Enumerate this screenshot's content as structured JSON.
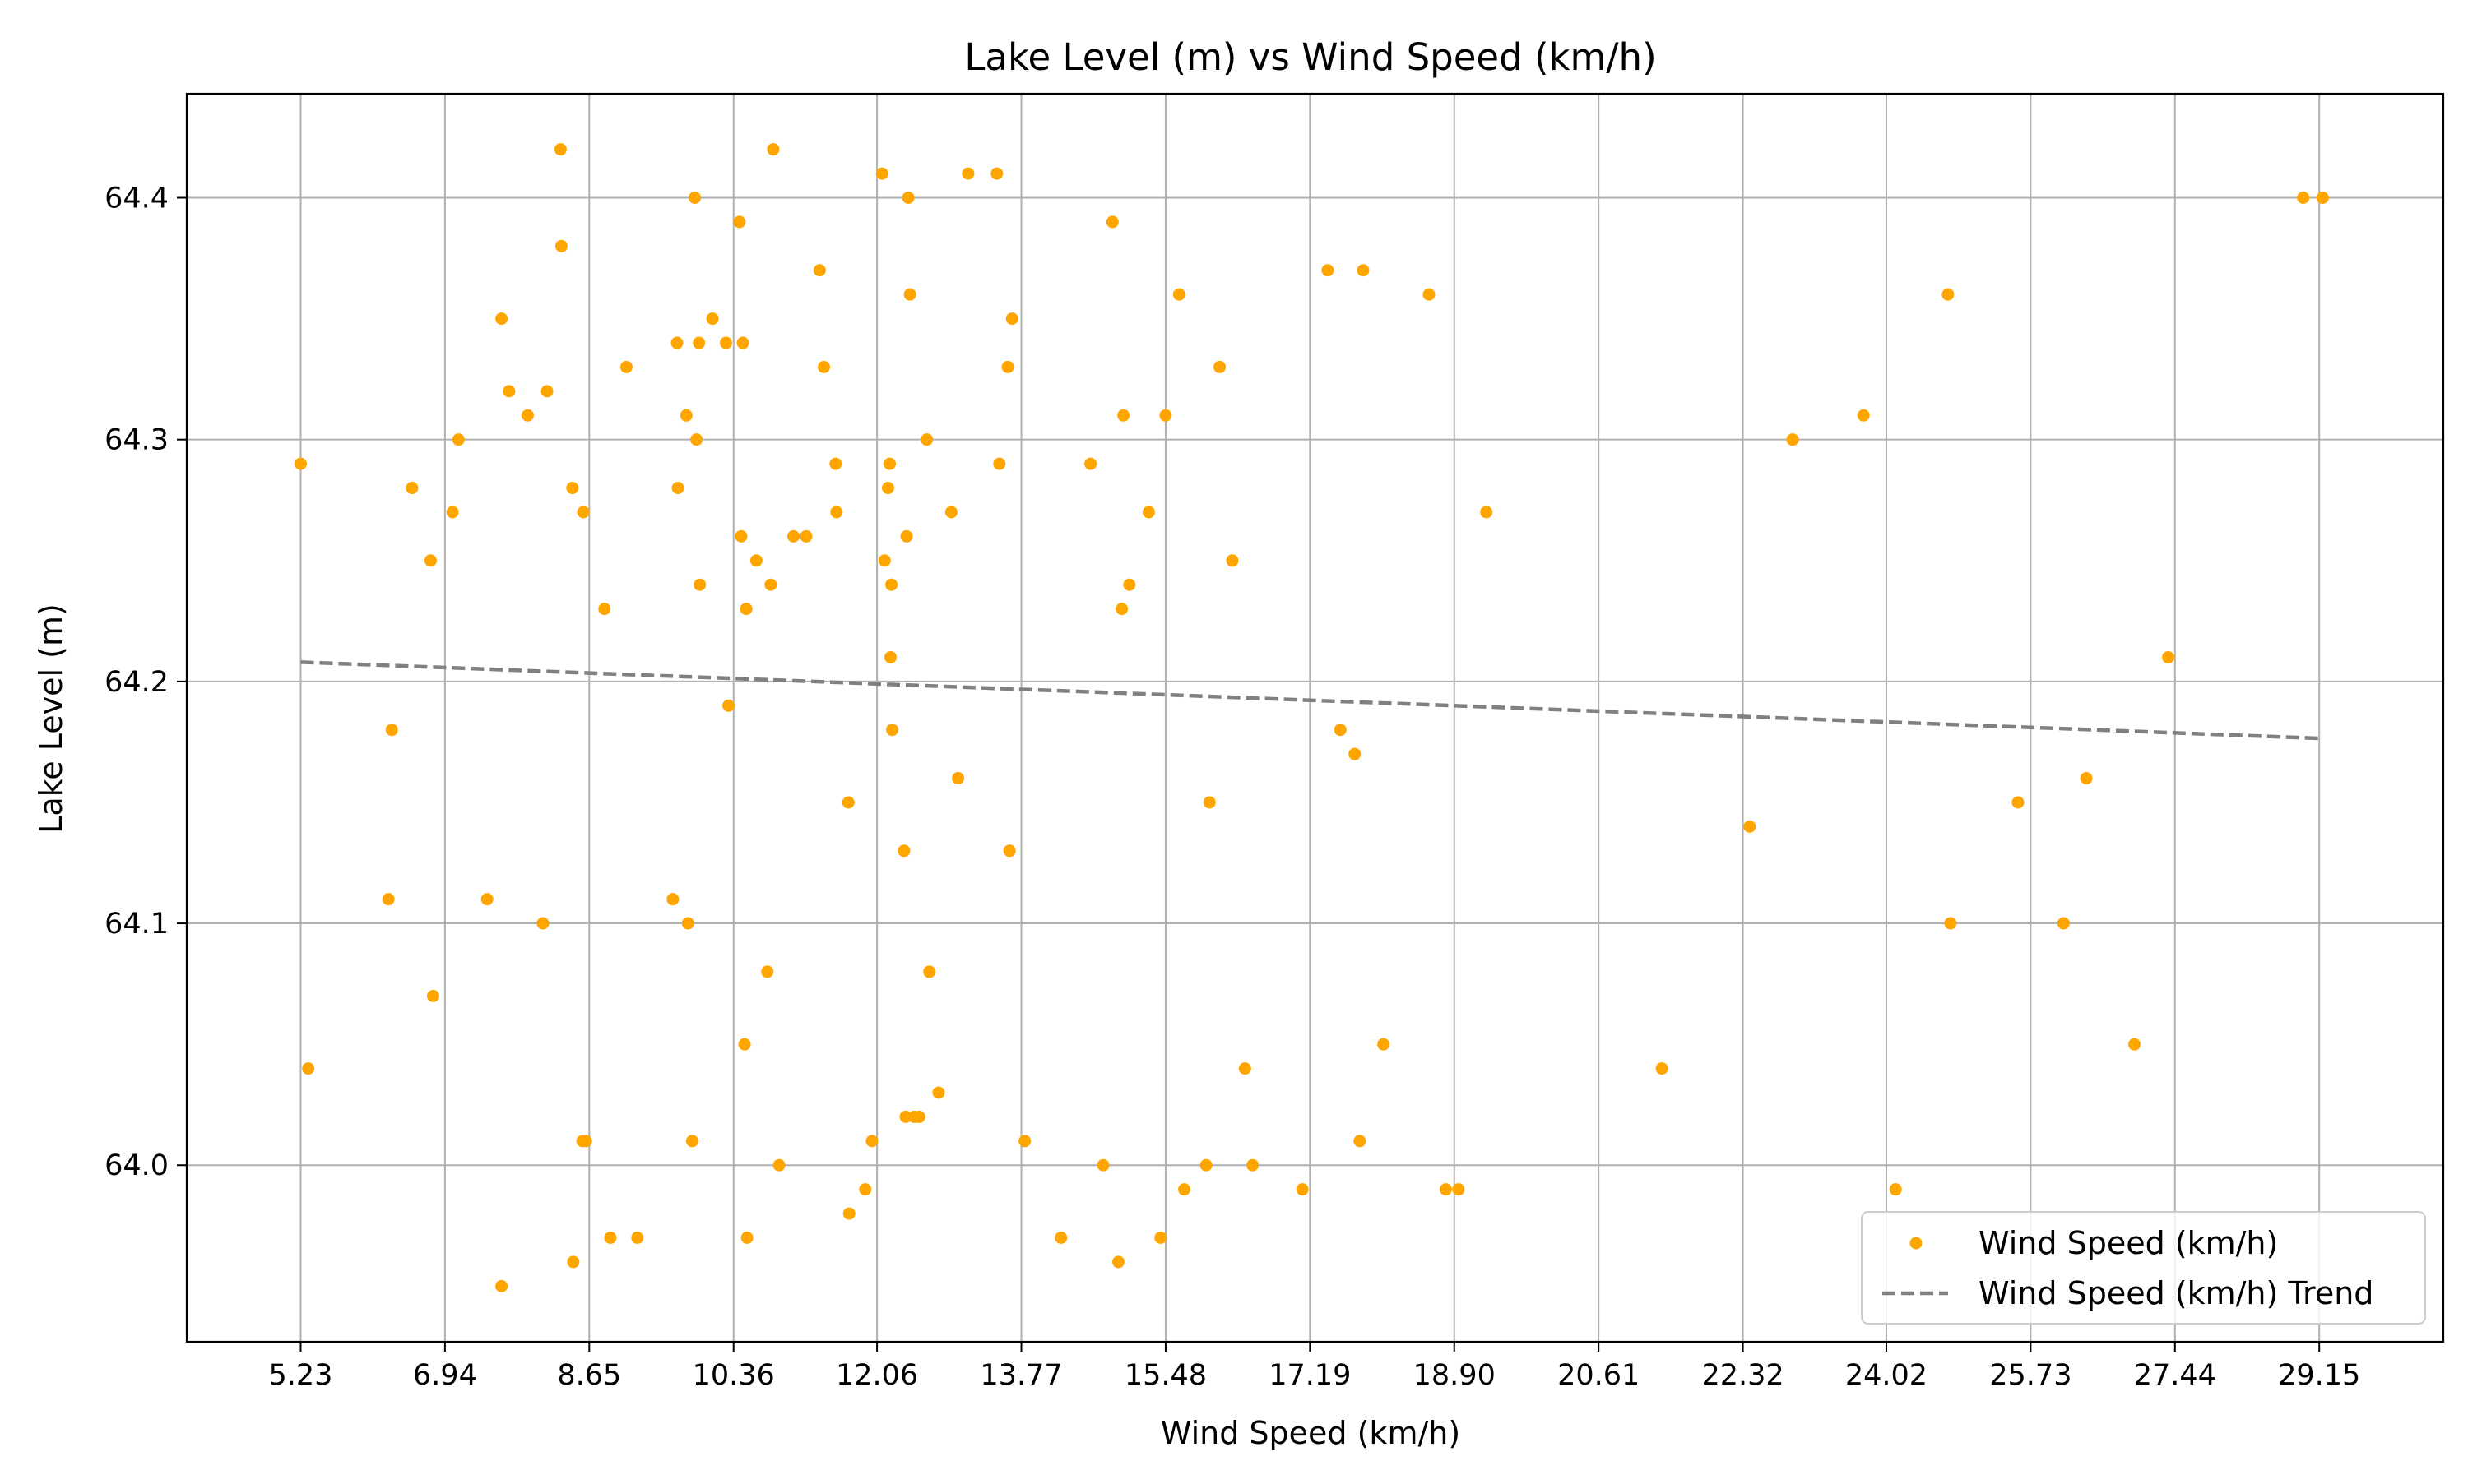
{
  "chart_data": {
    "type": "scatter",
    "title": "Lake Level (m) vs Wind Speed (km/h)",
    "xlabel": "Wind Speed (km/h)",
    "ylabel": "Lake Level (m)",
    "xlim": [
      3.88,
      30.62
    ],
    "ylim": [
      63.927,
      64.443
    ],
    "xticks": [
      "5.23",
      "6.94",
      "8.65",
      "10.36",
      "12.06",
      "13.77",
      "15.48",
      "17.19",
      "18.90",
      "20.61",
      "22.32",
      "24.02",
      "25.73",
      "27.44",
      "29.15"
    ],
    "yticks": [
      "64.0",
      "64.1",
      "64.2",
      "64.3",
      "64.4"
    ],
    "grid": true,
    "legend_position": "lower-right",
    "colors": {
      "points": "#ffa500",
      "trend": "#808080",
      "grid": "#b0b0b0"
    },
    "series": [
      {
        "name": "Wind Speed (km/h)",
        "kind": "scatter",
        "points": [
          [
            5.23,
            64.29
          ],
          [
            5.32,
            64.04
          ],
          [
            6.27,
            64.11
          ],
          [
            6.31,
            64.18
          ],
          [
            6.55,
            64.28
          ],
          [
            6.77,
            64.25
          ],
          [
            6.8,
            64.07
          ],
          [
            7.03,
            64.27
          ],
          [
            7.1,
            64.3
          ],
          [
            7.44,
            64.11
          ],
          [
            7.61,
            64.35
          ],
          [
            7.61,
            63.95
          ],
          [
            7.7,
            64.32
          ],
          [
            7.92,
            64.31
          ],
          [
            8.1,
            64.1
          ],
          [
            8.15,
            64.32
          ],
          [
            8.31,
            64.42
          ],
          [
            8.32,
            64.38
          ],
          [
            8.45,
            64.28
          ],
          [
            8.46,
            63.96
          ],
          [
            8.58,
            64.27
          ],
          [
            8.57,
            64.01
          ],
          [
            8.61,
            64.01
          ],
          [
            8.83,
            64.23
          ],
          [
            8.9,
            63.97
          ],
          [
            9.09,
            64.33
          ],
          [
            9.22,
            63.97
          ],
          [
            9.64,
            64.11
          ],
          [
            9.69,
            64.34
          ],
          [
            9.7,
            64.28
          ],
          [
            9.8,
            64.31
          ],
          [
            9.82,
            64.1
          ],
          [
            9.87,
            64.01
          ],
          [
            9.9,
            64.4
          ],
          [
            9.92,
            64.3
          ],
          [
            9.95,
            64.34
          ],
          [
            9.96,
            64.24
          ],
          [
            10.11,
            64.35
          ],
          [
            10.27,
            64.34
          ],
          [
            10.3,
            64.19
          ],
          [
            10.43,
            64.39
          ],
          [
            10.45,
            64.26
          ],
          [
            10.47,
            64.34
          ],
          [
            10.49,
            64.05
          ],
          [
            10.51,
            64.23
          ],
          [
            10.52,
            63.97
          ],
          [
            10.63,
            64.25
          ],
          [
            10.76,
            64.08
          ],
          [
            10.8,
            64.24
          ],
          [
            10.83,
            64.42
          ],
          [
            10.9,
            64.0
          ],
          [
            11.07,
            64.26
          ],
          [
            11.22,
            64.26
          ],
          [
            11.38,
            64.37
          ],
          [
            11.43,
            64.33
          ],
          [
            11.57,
            64.29
          ],
          [
            11.58,
            64.27
          ],
          [
            11.72,
            64.15
          ],
          [
            11.73,
            63.98
          ],
          [
            11.92,
            63.99
          ],
          [
            12.0,
            64.01
          ],
          [
            12.12,
            64.41
          ],
          [
            12.15,
            64.25
          ],
          [
            12.19,
            64.28
          ],
          [
            12.21,
            64.29
          ],
          [
            12.22,
            64.21
          ],
          [
            12.23,
            64.24
          ],
          [
            12.24,
            64.18
          ],
          [
            12.38,
            64.13
          ],
          [
            12.4,
            64.02
          ],
          [
            12.41,
            64.26
          ],
          [
            12.43,
            64.4
          ],
          [
            12.45,
            64.36
          ],
          [
            12.5,
            64.02
          ],
          [
            12.56,
            64.02
          ],
          [
            12.65,
            64.3
          ],
          [
            12.68,
            64.08
          ],
          [
            12.79,
            64.03
          ],
          [
            12.94,
            64.27
          ],
          [
            13.02,
            64.16
          ],
          [
            13.14,
            64.41
          ],
          [
            13.48,
            64.41
          ],
          [
            13.51,
            64.29
          ],
          [
            13.61,
            64.33
          ],
          [
            13.63,
            64.13
          ],
          [
            13.66,
            64.35
          ],
          [
            13.81,
            64.01
          ],
          [
            14.24,
            63.97
          ],
          [
            14.59,
            64.29
          ],
          [
            14.74,
            64.0
          ],
          [
            14.85,
            64.39
          ],
          [
            14.92,
            63.96
          ],
          [
            14.96,
            64.23
          ],
          [
            14.98,
            64.31
          ],
          [
            15.05,
            64.24
          ],
          [
            15.28,
            64.27
          ],
          [
            15.42,
            63.97
          ],
          [
            15.48,
            64.31
          ],
          [
            15.64,
            64.36
          ],
          [
            15.7,
            63.99
          ],
          [
            15.96,
            64.0
          ],
          [
            16.0,
            64.15
          ],
          [
            16.12,
            64.33
          ],
          [
            16.27,
            64.25
          ],
          [
            16.42,
            64.04
          ],
          [
            16.51,
            64.0
          ],
          [
            17.1,
            63.99
          ],
          [
            17.4,
            64.37
          ],
          [
            17.55,
            64.18
          ],
          [
            17.72,
            64.17
          ],
          [
            17.78,
            64.01
          ],
          [
            17.82,
            64.37
          ],
          [
            18.06,
            64.05
          ],
          [
            18.6,
            64.36
          ],
          [
            18.8,
            63.99
          ],
          [
            18.95,
            63.99
          ],
          [
            19.28,
            64.27
          ],
          [
            21.36,
            64.04
          ],
          [
            22.4,
            64.14
          ],
          [
            22.91,
            64.3
          ],
          [
            23.75,
            64.31
          ],
          [
            24.13,
            63.99
          ],
          [
            24.75,
            64.36
          ],
          [
            24.78,
            64.1
          ],
          [
            25.58,
            64.15
          ],
          [
            26.12,
            64.1
          ],
          [
            26.39,
            64.16
          ],
          [
            26.96,
            64.05
          ],
          [
            27.36,
            64.21
          ],
          [
            28.96,
            64.4
          ],
          [
            29.19,
            64.4
          ]
        ]
      },
      {
        "name": "Wind Speed (km/h) Trend",
        "kind": "trend-line",
        "points": [
          [
            5.23,
            64.208
          ],
          [
            29.15,
            64.1765
          ]
        ]
      }
    ]
  }
}
